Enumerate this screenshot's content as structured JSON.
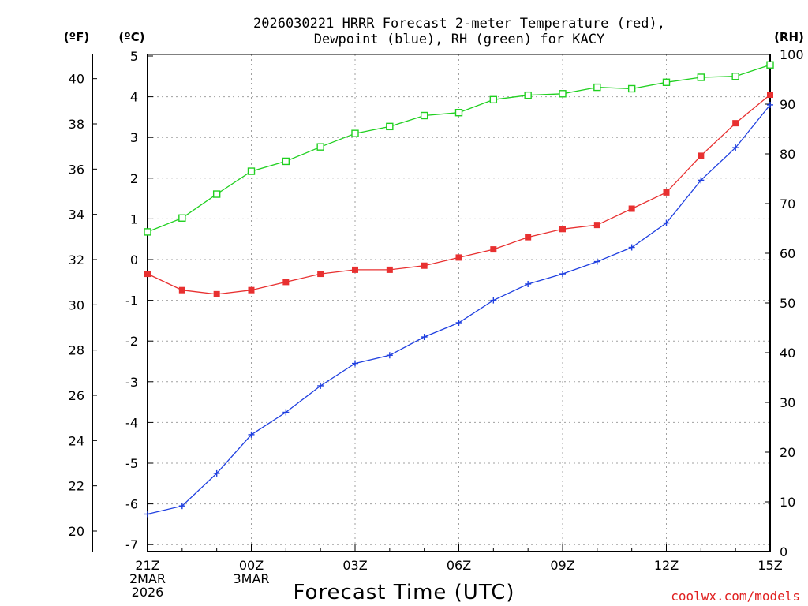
{
  "chart_data": {
    "type": "line",
    "title_lines": [
      "2026030221 HRRR Forecast 2-meter Temperature (red),",
      "Dewpoint (blue), RH (green) for KACY"
    ],
    "xlabel": "Forecast Time (UTC)",
    "credit": "coolwx.com/models",
    "unit_f": "(ºF)",
    "unit_c": "(ºC)",
    "unit_rh": "(RH)",
    "x_hours": [
      0,
      1,
      2,
      3,
      4,
      5,
      6,
      7,
      8,
      9,
      10,
      11,
      12,
      13,
      14,
      15,
      16,
      17,
      18
    ],
    "x_ticks": [
      {
        "hour": 0,
        "lines": [
          "21Z",
          "2MAR",
          "2026"
        ]
      },
      {
        "hour": 3,
        "lines": [
          "00Z",
          "3MAR"
        ]
      },
      {
        "hour": 6,
        "lines": [
          "03Z"
        ]
      },
      {
        "hour": 9,
        "lines": [
          "06Z"
        ]
      },
      {
        "hour": 12,
        "lines": [
          "09Z"
        ]
      },
      {
        "hour": 15,
        "lines": [
          "12Z"
        ]
      },
      {
        "hour": 18,
        "lines": [
          "15Z"
        ]
      }
    ],
    "c_range": [
      -7.2,
      5.0
    ],
    "c_ticks": [
      "5",
      "4",
      "3",
      "2",
      "1",
      "0",
      "-1",
      "-2",
      "-3",
      "-4",
      "-5",
      "-6",
      "-7"
    ],
    "f_ticks": [
      "40",
      "38",
      "36",
      "34",
      "32",
      "30",
      "28",
      "26",
      "24",
      "22",
      "20"
    ],
    "rh_range": [
      0,
      100
    ],
    "rh_ticks": [
      "100",
      "90",
      "80",
      "70",
      "60",
      "50",
      "40",
      "30",
      "20",
      "10",
      "0"
    ],
    "series": [
      {
        "name": "Temperature",
        "unit": "C",
        "color": "#e83030",
        "marker": "filled-square",
        "values": [
          -0.35,
          -0.75,
          -0.85,
          -0.75,
          -0.55,
          -0.35,
          -0.25,
          -0.25,
          -0.15,
          0.05,
          0.25,
          0.55,
          0.75,
          0.85,
          1.25,
          1.65,
          2.55,
          3.35,
          4.05
        ]
      },
      {
        "name": "Dewpoint",
        "unit": "C",
        "color": "#2040e0",
        "marker": "plus",
        "values": [
          -6.25,
          -6.05,
          -5.25,
          -4.3,
          -3.75,
          -3.1,
          -2.55,
          -2.35,
          -1.9,
          -1.55,
          -1.0,
          -0.6,
          -0.35,
          -0.05,
          0.3,
          0.9,
          1.95,
          2.75,
          3.8
        ]
      },
      {
        "name": "RH",
        "unit": "RH",
        "color": "#20d020",
        "marker": "open-square",
        "values": [
          64.3,
          67.1,
          71.9,
          76.5,
          78.5,
          81.4,
          84.1,
          85.5,
          87.7,
          88.3,
          90.9,
          91.8,
          92.1,
          93.4,
          93.1,
          94.4,
          95.4,
          95.6,
          97.9
        ]
      }
    ]
  }
}
